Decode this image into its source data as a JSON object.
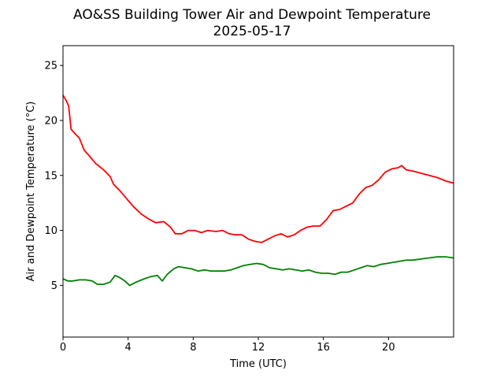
{
  "chart_data": {
    "type": "line",
    "title": "AO&SS Building Tower Air and Dewpoint Temperature",
    "subtitle": "2025-05-17",
    "xlabel": "Time (UTC)",
    "ylabel": "Air and Dewpoint Temperature (°C)",
    "xlim": [
      0,
      24
    ],
    "ylim": [
      0.3,
      26.8
    ],
    "xticks": [
      0,
      4,
      8,
      12,
      16,
      20
    ],
    "yticks": [
      5,
      10,
      15,
      20,
      25
    ],
    "grid": false,
    "series": [
      {
        "color": "#ff0000",
        "x": [
          0,
          0.2,
          0.35,
          0.5,
          0.8,
          1.0,
          1.3,
          1.6,
          2.0,
          2.5,
          2.9,
          3.1,
          3.5,
          3.9,
          4.3,
          4.8,
          5.3,
          5.7,
          6.2,
          6.6,
          6.9,
          7.3,
          7.7,
          8.1,
          8.5,
          8.9,
          9.4,
          9.8,
          10.2,
          10.6,
          11.0,
          11.4,
          11.8,
          12.2,
          12.6,
          13.0,
          13.4,
          13.8,
          14.2,
          14.6,
          15.0,
          15.4,
          15.8,
          16.2,
          16.6,
          17.0,
          17.4,
          17.8,
          18.2,
          18.6,
          19.0,
          19.4,
          19.8,
          20.2,
          20.6,
          20.8,
          21.1,
          21.5,
          22.0,
          22.5,
          23.0,
          23.5,
          24.0
        ],
        "y": [
          22.3,
          21.8,
          21.3,
          19.2,
          18.7,
          18.4,
          17.3,
          16.8,
          16.1,
          15.5,
          14.9,
          14.2,
          13.6,
          12.9,
          12.2,
          11.5,
          11.0,
          10.7,
          10.8,
          10.3,
          9.7,
          9.7,
          10.0,
          10.0,
          9.8,
          10.0,
          9.9,
          10.0,
          9.7,
          9.6,
          9.6,
          9.2,
          9.0,
          8.9,
          9.2,
          9.5,
          9.7,
          9.4,
          9.6,
          10.0,
          10.3,
          10.4,
          10.4,
          11.0,
          11.8,
          11.9,
          12.2,
          12.5,
          13.3,
          13.9,
          14.1,
          14.6,
          15.3,
          15.6,
          15.7,
          15.9,
          15.5,
          15.4,
          15.2,
          15.0,
          14.8,
          14.5,
          14.3
        ]
      },
      {
        "color": "#008000",
        "x": [
          0,
          0.3,
          0.6,
          1.0,
          1.4,
          1.8,
          2.1,
          2.5,
          2.9,
          3.2,
          3.5,
          3.8,
          4.1,
          4.5,
          5.0,
          5.4,
          5.8,
          6.1,
          6.4,
          6.8,
          7.1,
          7.5,
          7.9,
          8.3,
          8.7,
          9.1,
          9.5,
          9.9,
          10.3,
          10.7,
          11.1,
          11.5,
          11.9,
          12.3,
          12.7,
          13.1,
          13.5,
          13.9,
          14.3,
          14.7,
          15.1,
          15.5,
          15.9,
          16.3,
          16.7,
          17.1,
          17.5,
          17.9,
          18.3,
          18.7,
          19.1,
          19.5,
          19.9,
          20.3,
          20.7,
          21.1,
          21.5,
          22.0,
          22.5,
          23.0,
          23.5,
          24.0
        ],
        "y": [
          5.6,
          5.4,
          5.4,
          5.5,
          5.5,
          5.4,
          5.1,
          5.1,
          5.3,
          5.9,
          5.7,
          5.4,
          5.0,
          5.3,
          5.6,
          5.8,
          5.9,
          5.4,
          6.0,
          6.5,
          6.7,
          6.6,
          6.5,
          6.3,
          6.4,
          6.3,
          6.3,
          6.3,
          6.4,
          6.6,
          6.8,
          6.9,
          7.0,
          6.9,
          6.6,
          6.5,
          6.4,
          6.5,
          6.4,
          6.3,
          6.4,
          6.2,
          6.1,
          6.1,
          6.0,
          6.2,
          6.2,
          6.4,
          6.6,
          6.8,
          6.7,
          6.9,
          7.0,
          7.1,
          7.2,
          7.3,
          7.3,
          7.4,
          7.5,
          7.6,
          7.6,
          7.5
        ]
      }
    ]
  }
}
